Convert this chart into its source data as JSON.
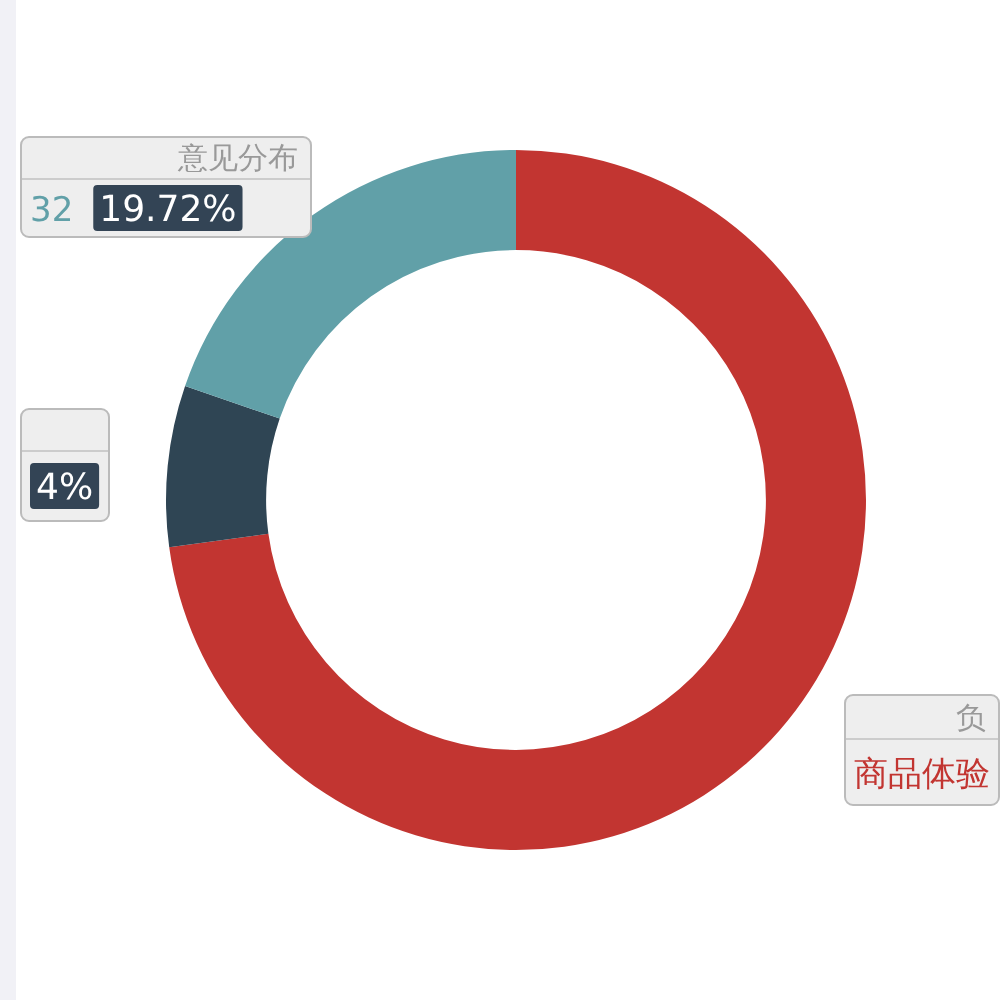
{
  "chart_data": {
    "type": "donut",
    "categories": [
      "商品体验",
      null,
      null
    ],
    "values": [
      72.84,
      7.44,
      19.72
    ],
    "colors": [
      "#c23531",
      "#2f4554",
      "#61a0a8"
    ],
    "value_labels": [
      null,
      null,
      "19.72%"
    ],
    "annotations": [
      "意见分布",
      "32",
      "4%",
      "负"
    ]
  }
}
